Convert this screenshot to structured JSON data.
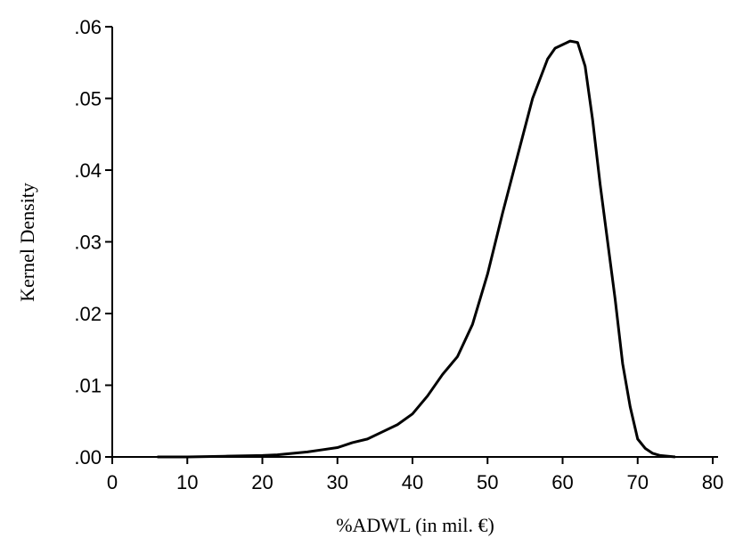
{
  "chart_data": {
    "type": "line",
    "x_label": "%ADWL (in mil. €)",
    "y_label": "Kernel Density",
    "x": [
      6,
      10,
      15,
      20,
      22,
      24,
      26,
      28,
      30,
      32,
      34,
      36,
      38,
      40,
      42,
      44,
      46,
      48,
      50,
      52,
      54,
      56,
      58,
      59,
      60,
      61,
      62,
      63,
      64,
      65,
      66,
      67,
      68,
      69,
      70,
      71,
      72,
      73,
      75
    ],
    "series": [
      {
        "color": "#000000",
        "values": [
          0,
          0,
          0.0001,
          0.0002,
          0.0003,
          0.0005,
          0.0007,
          0.001,
          0.0013,
          0.002,
          0.0025,
          0.0035,
          0.0045,
          0.006,
          0.0085,
          0.0115,
          0.014,
          0.0185,
          0.0255,
          0.034,
          0.042,
          0.05,
          0.0555,
          0.057,
          0.0575,
          0.058,
          0.0578,
          0.0545,
          0.047,
          0.038,
          0.03,
          0.022,
          0.013,
          0.007,
          0.0025,
          0.0012,
          0.0005,
          0.0002,
          0
        ]
      }
    ],
    "xlim": [
      0,
      80
    ],
    "xticks": [
      0,
      10,
      20,
      30,
      40,
      50,
      60,
      70,
      80
    ],
    "ylim": [
      0,
      0.06
    ],
    "yticks": [
      {
        "value": 0,
        "label": ".00"
      },
      {
        "value": 0.01,
        "label": ".01"
      },
      {
        "value": 0.02,
        "label": ".02"
      },
      {
        "value": 0.03,
        "label": ".03"
      },
      {
        "value": 0.04,
        "label": ".04"
      },
      {
        "value": 0.05,
        "label": ".05"
      },
      {
        "value": 0.06,
        "label": ".06"
      }
    ]
  }
}
